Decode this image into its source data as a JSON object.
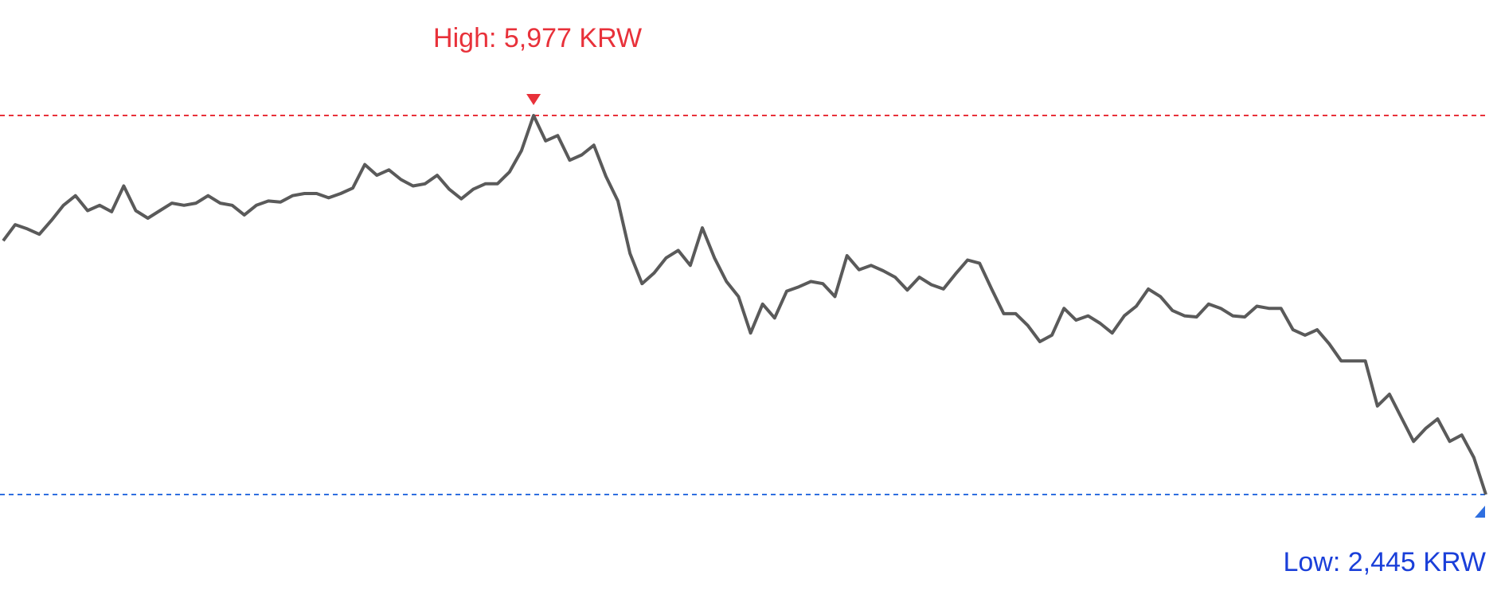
{
  "chart_data": {
    "type": "line",
    "color": "#5a5a5a",
    "high": {
      "value": 5977,
      "label": "High: 5,977 KRW",
      "color": "#e8313a"
    },
    "low": {
      "value": 2445,
      "label": "Low: 2,445 KRW",
      "color": "#1a3fd9",
      "line_color": "#2f6fe0"
    },
    "values": [
      4810,
      4960,
      4920,
      4870,
      5000,
      5140,
      5230,
      5090,
      5140,
      5080,
      5320,
      5090,
      5020,
      5090,
      5160,
      5140,
      5160,
      5230,
      5160,
      5140,
      5050,
      5140,
      5180,
      5170,
      5230,
      5250,
      5250,
      5210,
      5250,
      5300,
      5520,
      5420,
      5470,
      5380,
      5320,
      5340,
      5420,
      5290,
      5200,
      5290,
      5340,
      5340,
      5450,
      5650,
      5977,
      5740,
      5790,
      5560,
      5610,
      5700,
      5410,
      5180,
      4690,
      4410,
      4510,
      4650,
      4720,
      4580,
      4930,
      4650,
      4430,
      4290,
      3950,
      4220,
      4090,
      4340,
      4380,
      4430,
      4410,
      4290,
      4670,
      4540,
      4580,
      4530,
      4470,
      4350,
      4470,
      4400,
      4360,
      4500,
      4630,
      4600,
      4360,
      4130,
      4130,
      4020,
      3870,
      3930,
      4180,
      4070,
      4110,
      4040,
      3950,
      4110,
      4200,
      4360,
      4290,
      4160,
      4110,
      4100,
      4220,
      4180,
      4110,
      4100,
      4200,
      4180,
      4180,
      3980,
      3930,
      3980,
      3850,
      3690,
      3690,
      3690,
      3270,
      3380,
      3160,
      2940,
      3060,
      3150,
      2940,
      3000,
      2790,
      2445
    ]
  }
}
